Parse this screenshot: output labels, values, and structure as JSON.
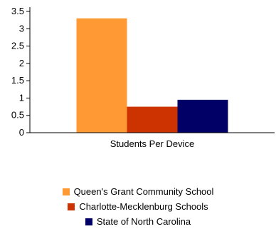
{
  "chart_data": {
    "type": "bar",
    "categories": [
      "Students Per Device"
    ],
    "series": [
      {
        "name": "Queen's Grant Community School",
        "values": [
          3.3
        ],
        "color": "#ff9933"
      },
      {
        "name": "Charlotte-Mecklenburg Schools",
        "values": [
          0.75
        ],
        "color": "#cc3300"
      },
      {
        "name": "State of North Carolina",
        "values": [
          0.95
        ],
        "color": "#000066"
      }
    ],
    "title": "",
    "xlabel": "",
    "ylabel": "",
    "ylim": [
      0,
      3.5
    ],
    "yticks": [
      "0",
      "0.5",
      "1",
      "1.5",
      "2",
      "2.5",
      "3",
      "3.5"
    ],
    "grid": false,
    "legend_position": "bottom"
  }
}
